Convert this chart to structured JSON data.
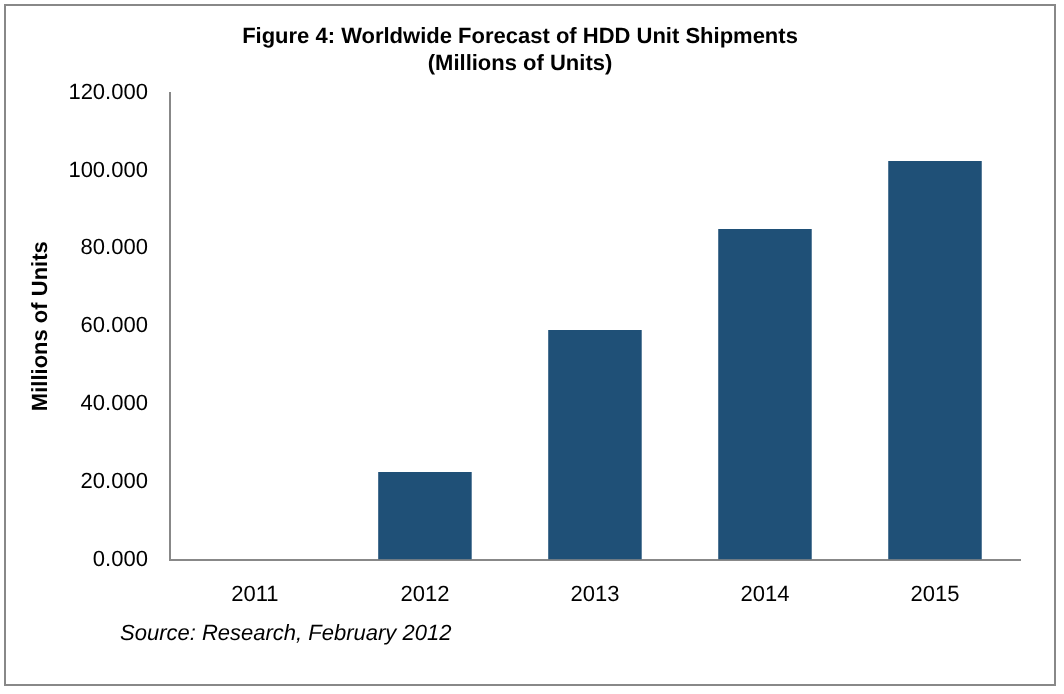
{
  "chart_data": {
    "type": "bar",
    "title": [
      "Figure 4: Worldwide Forecast of HDD Unit Shipments",
      "(Millions of Units)"
    ],
    "ylabel": "Millions of Units",
    "categories": [
      "2011",
      "2012",
      "2013",
      "2014",
      "2015"
    ],
    "values": [
      0,
      22.5,
      59,
      85,
      102.5
    ],
    "color": "#1f5077",
    "ylim": [
      0,
      120
    ],
    "yticks": [
      {
        "value": 0,
        "label": "0.000"
      },
      {
        "value": 20,
        "label": "20.000"
      },
      {
        "value": 40,
        "label": "40.000"
      },
      {
        "value": 60,
        "label": "60.000"
      },
      {
        "value": 80,
        "label": "80.000"
      },
      {
        "value": 100,
        "label": "100.000"
      },
      {
        "value": 120,
        "label": "120.000"
      }
    ],
    "grid": false,
    "legend": false,
    "annotations": [
      "Source: Research, February 2012"
    ]
  }
}
